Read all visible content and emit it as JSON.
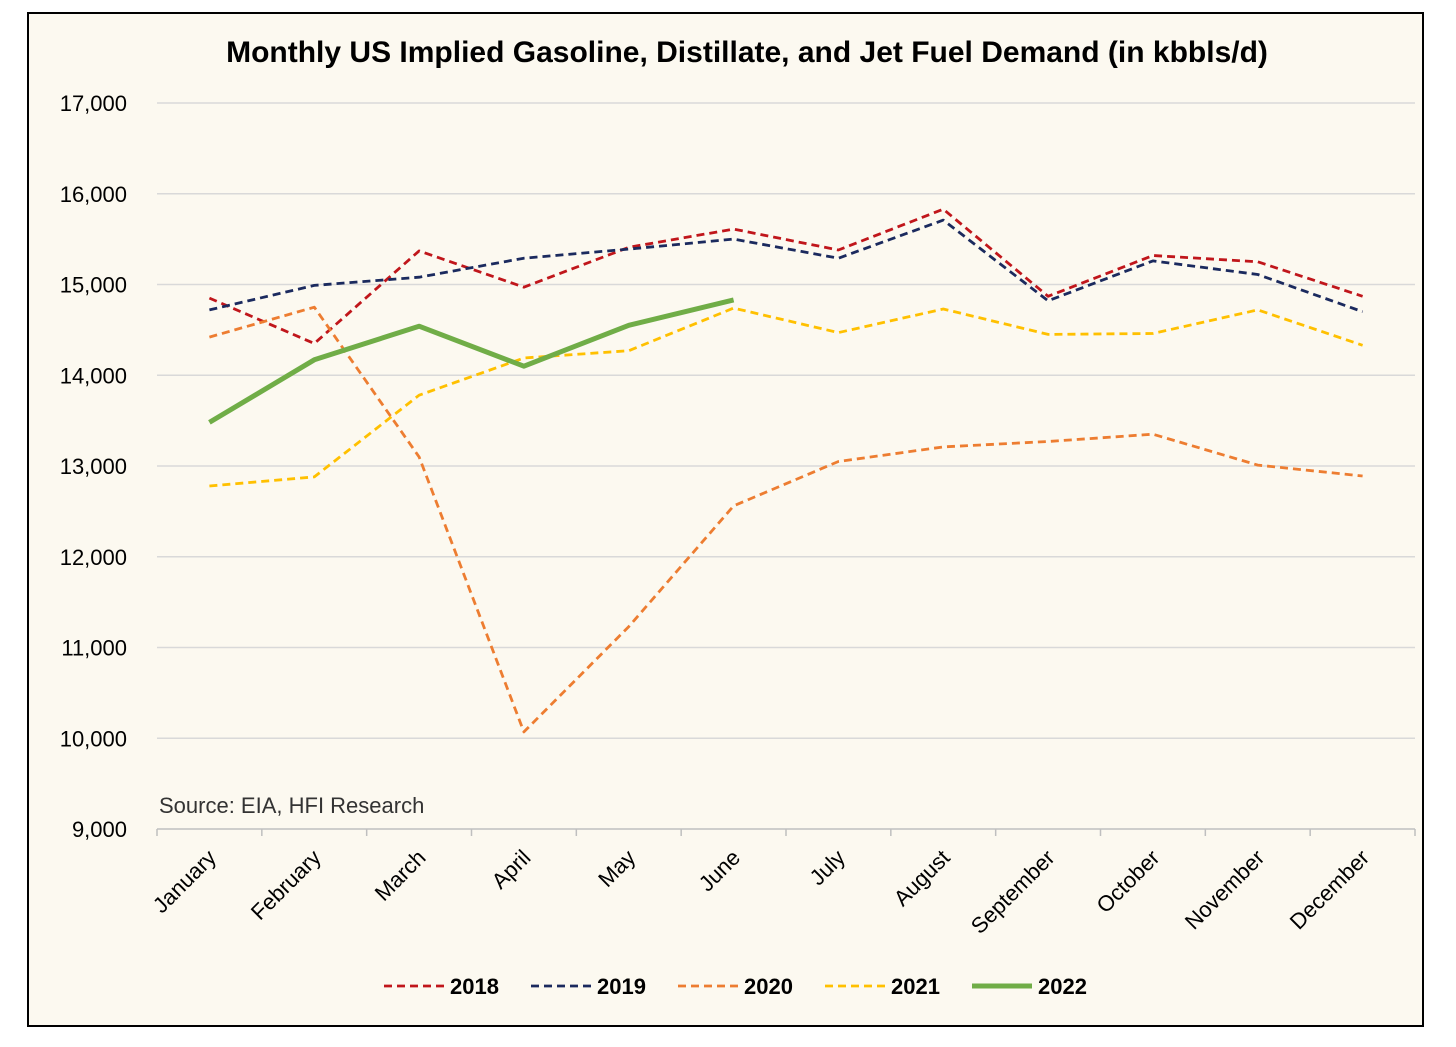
{
  "chart_data": {
    "type": "line",
    "title": "Monthly US Implied Gasoline, Distillate, and Jet Fuel Demand (in kbbls/d)",
    "xlabel": "",
    "ylabel": "",
    "categories": [
      "January",
      "February",
      "March",
      "April",
      "May",
      "June",
      "July",
      "August",
      "September",
      "October",
      "November",
      "December"
    ],
    "ylim": [
      9000,
      17000
    ],
    "yticks": [
      9000,
      10000,
      11000,
      12000,
      13000,
      14000,
      15000,
      16000,
      17000
    ],
    "ytick_labels": [
      "9,000",
      "10,000",
      "11,000",
      "12,000",
      "13,000",
      "14,000",
      "15,000",
      "16,000",
      "17,000"
    ],
    "grid": "horizontal",
    "legend_position": "bottom",
    "annotation": "Source: EIA, HFI Research",
    "series": [
      {
        "name": "2018",
        "color": "#c0161b",
        "style": "dashed",
        "values": [
          14850,
          14350,
          15370,
          14970,
          15410,
          15610,
          15380,
          15830,
          14870,
          15320,
          15250,
          14870
        ]
      },
      {
        "name": "2019",
        "color": "#1b2a5e",
        "style": "dashed",
        "values": [
          14720,
          14990,
          15080,
          15290,
          15390,
          15500,
          15290,
          15710,
          14820,
          15260,
          15110,
          14700
        ]
      },
      {
        "name": "2020",
        "color": "#ed7d31",
        "style": "dashed",
        "values": [
          14420,
          14750,
          13100,
          10070,
          11230,
          12560,
          13050,
          13210,
          13270,
          13350,
          13010,
          12890
        ]
      },
      {
        "name": "2021",
        "color": "#ffc000",
        "style": "dashed",
        "values": [
          12780,
          12880,
          13780,
          14190,
          14270,
          14740,
          14470,
          14730,
          14450,
          14460,
          14720,
          14330
        ]
      },
      {
        "name": "2022",
        "color": "#70ad47",
        "style": "solid",
        "values": [
          13480,
          14170,
          14540,
          14100,
          14550,
          14830,
          null,
          null,
          null,
          null,
          null,
          null
        ]
      }
    ]
  }
}
